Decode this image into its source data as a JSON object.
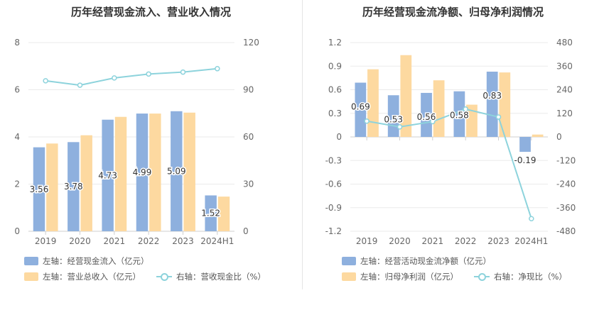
{
  "colors": {
    "bar_primary": "#8eb0de",
    "bar_secondary": "#fdd9a0",
    "line": "#8dd3dc",
    "axis_text": "#666666",
    "grid": "#ebebeb"
  },
  "chart_data": [
    {
      "type": "bar",
      "title": "历年经营现金流入、营业收入情况",
      "categories": [
        "2019",
        "2020",
        "2021",
        "2022",
        "2023",
        "2024H1"
      ],
      "series": [
        {
          "name": "左轴：经营现金流入（亿元）",
          "axis": "left",
          "kind": "bar",
          "values": [
            3.56,
            3.78,
            4.73,
            4.99,
            5.09,
            1.52
          ],
          "labels": [
            "3.56",
            "3.78",
            "4.73",
            "4.99",
            "5.09",
            "1.52"
          ]
        },
        {
          "name": "左轴：营业总收入（亿元）",
          "axis": "left",
          "kind": "bar",
          "values": [
            3.72,
            4.07,
            4.85,
            4.99,
            5.03,
            1.47
          ]
        },
        {
          "name": "右轴：营收现金比（%）",
          "axis": "right",
          "kind": "line",
          "values": [
            95.7,
            92.9,
            97.5,
            100.0,
            101.2,
            103.4
          ]
        }
      ],
      "y_left": {
        "min": 0,
        "max": 8,
        "ticks": [
          "0",
          "2",
          "4",
          "6",
          "8"
        ]
      },
      "y_right": {
        "min": 0,
        "max": 120,
        "ticks": [
          "0",
          "30",
          "60",
          "90",
          "120"
        ]
      },
      "grid": true,
      "legend_position": "bottom-left"
    },
    {
      "type": "bar",
      "title": "历年经营现金流净额、归母净利润情况",
      "categories": [
        "2019",
        "2020",
        "2021",
        "2022",
        "2023",
        "2024H1"
      ],
      "series": [
        {
          "name": "左轴：经营活动现金流净额（亿元）",
          "axis": "left",
          "kind": "bar",
          "values": [
            0.69,
            0.53,
            0.56,
            0.58,
            0.83,
            -0.19
          ],
          "labels": [
            "0.69",
            "0.53",
            "0.56",
            "0.58",
            "0.83",
            "-0.19"
          ]
        },
        {
          "name": "左轴：归母净利润（亿元）",
          "axis": "left",
          "kind": "bar",
          "values": [
            0.86,
            1.04,
            0.72,
            0.41,
            0.82,
            0.03
          ]
        },
        {
          "name": "右轴：净现比（%）",
          "axis": "right",
          "kind": "line",
          "values": [
            80.2,
            51.0,
            77.8,
            141.5,
            101.2,
            -416.0
          ]
        }
      ],
      "y_left": {
        "min": -1.2,
        "max": 1.2,
        "ticks": [
          "-1.2",
          "-0.9",
          "-0.6",
          "-0.3",
          "0",
          "0.3",
          "0.6",
          "0.9",
          "1.2"
        ]
      },
      "y_right": {
        "min": -480,
        "max": 480,
        "ticks": [
          "-480",
          "-360",
          "-240",
          "-120",
          "0",
          "120",
          "240",
          "360",
          "480"
        ]
      },
      "grid": true,
      "legend_position": "bottom-left"
    }
  ]
}
